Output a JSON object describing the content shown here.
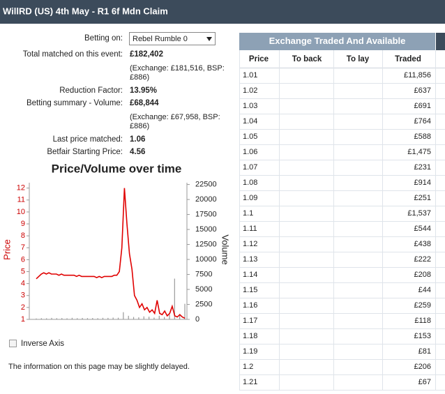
{
  "header": {
    "title": "WillRD (US) 4th May - R1 6f Mdn Claim"
  },
  "betting_on": {
    "label": "Betting on:",
    "selection": "Rebel Rumble 0"
  },
  "summary": [
    {
      "label": "Total matched on this event:",
      "value": "£182,402",
      "note": [
        "(Exchange: £181,516, BSP:",
        "£886)"
      ]
    },
    {
      "label": "Reduction Factor:",
      "value": "13.95%"
    },
    {
      "label": "Betting summary - Volume:",
      "value": "£68,844",
      "note": [
        "(Exchange: £67,958, BSP:",
        "£886)"
      ]
    },
    {
      "label": "Last price matched:",
      "value": "1.06"
    },
    {
      "label": "Betfair Starting Price:",
      "value": "4.56"
    }
  ],
  "chart_data": {
    "type": "line",
    "title": "Price/Volume over time",
    "ylabel": "Price",
    "y2label": "Volume",
    "ylim": [
      1,
      12.45
    ],
    "yticks": [
      1,
      2,
      3,
      4,
      5,
      6,
      7,
      8,
      9,
      10,
      11,
      12
    ],
    "ycolor": "#cc0000",
    "y2lim": [
      0,
      22800
    ],
    "y2ticks": [
      0,
      2500,
      5000,
      7500,
      10000,
      12500,
      15000,
      17500,
      20000,
      22500
    ],
    "series": [
      {
        "type": "line",
        "color": "#e00000",
        "values": [
          4.4,
          4.6,
          4.8,
          4.9,
          4.8,
          4.9,
          4.8,
          4.8,
          4.8,
          4.7,
          4.8,
          4.7,
          4.7,
          4.7,
          4.7,
          4.7,
          4.6,
          4.7,
          4.6,
          4.6,
          4.6,
          4.6,
          4.6,
          4.6,
          4.5,
          4.6,
          4.5,
          4.6,
          4.6,
          4.6,
          4.6,
          4.7,
          4.7,
          5.0,
          7.0,
          12.0,
          9.0,
          6.5,
          5.2,
          3.0,
          2.6,
          2.0,
          2.3,
          1.8,
          2.0,
          1.6,
          1.8,
          1.5,
          2.6,
          1.5,
          1.4,
          1.7,
          1.3,
          1.5,
          2.1,
          1.3,
          1.2,
          1.4,
          1.2,
          1.1
        ]
      },
      {
        "type": "bar",
        "axis": "y2",
        "color": "#999999",
        "values": [
          150,
          200,
          180,
          250,
          200,
          220,
          180,
          260,
          200,
          240,
          210,
          230,
          200,
          260,
          250,
          300,
          280,
          1200,
          600,
          400,
          350,
          500,
          450,
          300,
          600,
          400,
          800,
          6800,
          900,
          2600
        ]
      }
    ]
  },
  "inverse_axis": {
    "label": "Inverse Axis"
  },
  "notice": "The information on this page may be slightly delayed.",
  "table": {
    "title": "Exchange Traded And Available",
    "columns": [
      "Price",
      "To back",
      "To lay",
      "Traded"
    ],
    "rows": [
      {
        "price": "1.01",
        "traded": "£11,856"
      },
      {
        "price": "1.02",
        "traded": "£637"
      },
      {
        "price": "1.03",
        "traded": "£691"
      },
      {
        "price": "1.04",
        "traded": "£764"
      },
      {
        "price": "1.05",
        "traded": "£588"
      },
      {
        "price": "1.06",
        "traded": "£1,475"
      },
      {
        "price": "1.07",
        "traded": "£231"
      },
      {
        "price": "1.08",
        "traded": "£914"
      },
      {
        "price": "1.09",
        "traded": "£251"
      },
      {
        "price": "1.1",
        "traded": "£1,537"
      },
      {
        "price": "1.11",
        "traded": "£544"
      },
      {
        "price": "1.12",
        "traded": "£438"
      },
      {
        "price": "1.13",
        "traded": "£222"
      },
      {
        "price": "1.14",
        "traded": "£208"
      },
      {
        "price": "1.15",
        "traded": "£44"
      },
      {
        "price": "1.16",
        "traded": "£259"
      },
      {
        "price": "1.17",
        "traded": "£118"
      },
      {
        "price": "1.18",
        "traded": "£153"
      },
      {
        "price": "1.19",
        "traded": "£81"
      },
      {
        "price": "1.2",
        "traded": "£206"
      },
      {
        "price": "1.21",
        "traded": "£67"
      }
    ]
  }
}
